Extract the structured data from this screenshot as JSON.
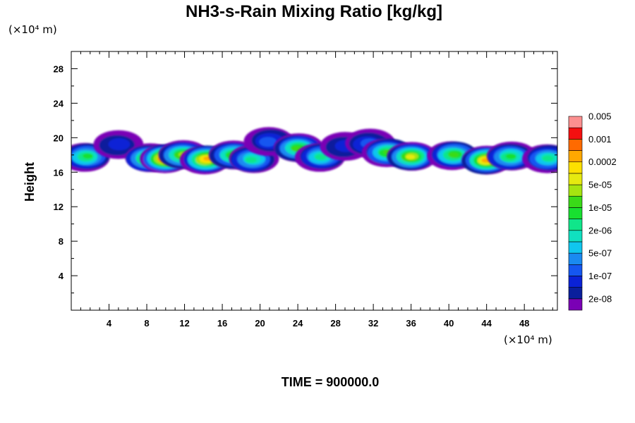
{
  "chart_data": {
    "type": "heatmap",
    "title": "NH3-s-Rain Mixing Ratio [kg/kg]",
    "ylabel": "Height",
    "xlabel": "",
    "x_unit_label": "(×10⁴ m)",
    "y_unit_label": "(×10⁴ m)",
    "footer": "TIME = 900000.0",
    "xlim": [
      0,
      51.5
    ],
    "ylim": [
      0,
      30
    ],
    "x_ticks": [
      4,
      8,
      12,
      16,
      20,
      24,
      28,
      32,
      36,
      40,
      44,
      48
    ],
    "y_ticks": [
      4,
      8,
      12,
      16,
      20,
      24,
      28
    ],
    "x_tick_labels": [
      "4",
      "8",
      "12",
      "16",
      "20",
      "24",
      "28",
      "32",
      "36",
      "40",
      "44",
      "48"
    ],
    "y_tick_labels": [
      "4",
      "8",
      "12",
      "16",
      "20",
      "24",
      "28"
    ],
    "colorbar": {
      "colors": [
        "#7a00b5",
        "#0a1f9c",
        "#0a22d6",
        "#1557f0",
        "#1a8af0",
        "#10c6ee",
        "#10e0c0",
        "#10e68a",
        "#18e030",
        "#3ada18",
        "#a6e410",
        "#e6ea10",
        "#fde000",
        "#ffa800",
        "#ff6a00",
        "#f41010",
        "#fc9090"
      ],
      "labels": [
        "2e-08",
        "1e-07",
        "5e-07",
        "2e-06",
        "1e-05",
        "5e-05",
        "0.0002",
        "0.001",
        "0.005"
      ]
    },
    "cloud_layer": {
      "base_height": 16.5,
      "top_height": 19.5,
      "max_value_location": {
        "x": 10,
        "y": 17.6,
        "value": "0.001"
      },
      "cores": [
        {
          "x": 1.6,
          "y": 17.8,
          "level": 8
        },
        {
          "x": 5.0,
          "y": 19.2,
          "level": 2
        },
        {
          "x": 8.2,
          "y": 17.6,
          "level": 10
        },
        {
          "x": 10.0,
          "y": 17.6,
          "level": 15
        },
        {
          "x": 11.8,
          "y": 18.0,
          "level": 10
        },
        {
          "x": 14.3,
          "y": 17.5,
          "level": 13
        },
        {
          "x": 17.2,
          "y": 18.0,
          "level": 9
        },
        {
          "x": 19.2,
          "y": 17.5,
          "level": 7
        },
        {
          "x": 21.0,
          "y": 19.6,
          "level": 3
        },
        {
          "x": 24.0,
          "y": 18.8,
          "level": 9
        },
        {
          "x": 26.5,
          "y": 17.8,
          "level": 7
        },
        {
          "x": 29.0,
          "y": 19.0,
          "level": 2
        },
        {
          "x": 31.5,
          "y": 19.3,
          "level": 3
        },
        {
          "x": 33.5,
          "y": 18.3,
          "level": 9
        },
        {
          "x": 36.0,
          "y": 17.8,
          "level": 11
        },
        {
          "x": 40.5,
          "y": 18.0,
          "level": 9
        },
        {
          "x": 44.0,
          "y": 17.4,
          "level": 13
        },
        {
          "x": 46.5,
          "y": 17.8,
          "level": 8
        },
        {
          "x": 50.5,
          "y": 17.6,
          "level": 7
        }
      ]
    }
  }
}
